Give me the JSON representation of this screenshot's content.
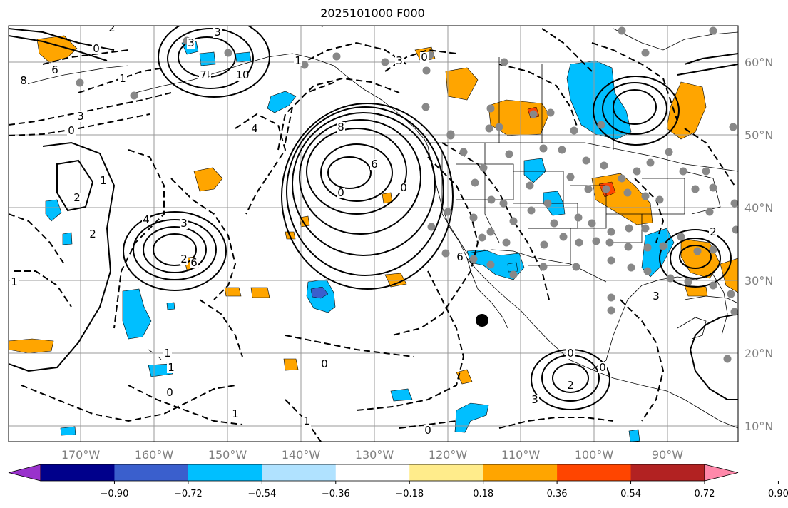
{
  "title": "2025101000 F000",
  "map": {
    "lon_labels": [
      "170°W",
      "160°W",
      "150°W",
      "140°W",
      "130°W",
      "120°W",
      "110°W",
      "100°W",
      "90°W"
    ],
    "lat_labels": [
      "60°N",
      "50°N",
      "40°N",
      "30°N",
      "20°N",
      "10°N"
    ],
    "label_color": "#808080",
    "grid_color": "#999999",
    "contour_labels": [
      "2",
      "3",
      "4",
      "0",
      "6",
      "8",
      "3",
      "1",
      "0",
      "1",
      "2",
      "2",
      "4",
      "3",
      "2",
      "6",
      "4",
      "3",
      "10",
      "8",
      "6",
      "0",
      "0",
      "6",
      "4",
      "7",
      "0",
      "3",
      "1",
      "1",
      "0",
      "2",
      "3",
      "0",
      "3",
      "2",
      "0",
      "1",
      "0",
      "1",
      "0",
      "1",
      "1"
    ]
  },
  "colorbar": {
    "ticks": [
      "−0.90",
      "−0.72",
      "−0.54",
      "−0.36",
      "−0.18",
      "0.18",
      "0.36",
      "0.54",
      "0.72",
      "0.90"
    ],
    "colors": [
      "#9932cc",
      "#00008b",
      "#3a5fcd",
      "#00bfff",
      "#b0e2ff",
      "#ffffff",
      "#ffec8b",
      "#ffa500",
      "#ff4500",
      "#b22222",
      "#ff88aa"
    ],
    "extend": "both"
  }
}
